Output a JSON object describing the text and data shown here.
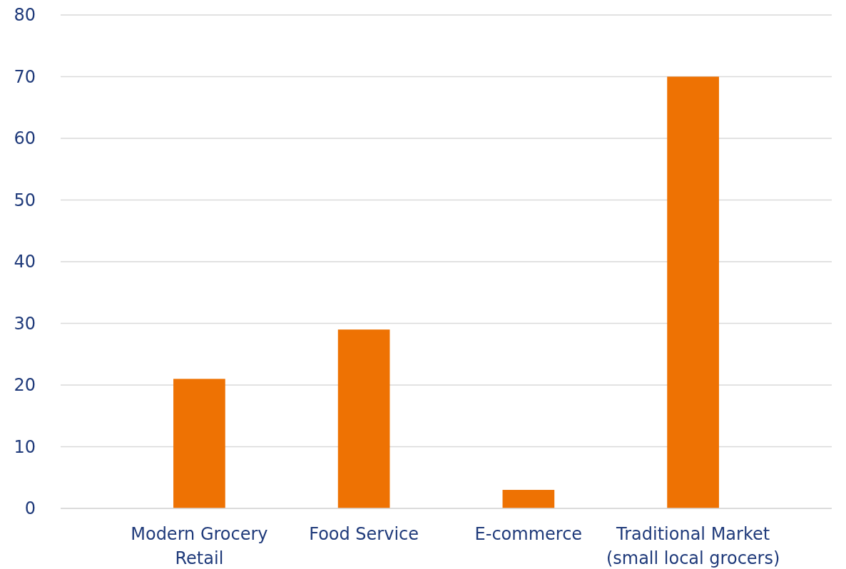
{
  "chart_data": {
    "type": "bar",
    "categories": [
      "Modern Grocery Retail",
      "Food Service",
      "E-commerce",
      "Traditional Market (small local grocers)"
    ],
    "values": [
      21,
      29,
      3,
      70
    ],
    "color": "#ee7203",
    "ylim": [
      0,
      80
    ],
    "yticks": [
      0,
      10,
      20,
      30,
      40,
      50,
      60,
      70,
      80
    ],
    "grid": "y"
  }
}
